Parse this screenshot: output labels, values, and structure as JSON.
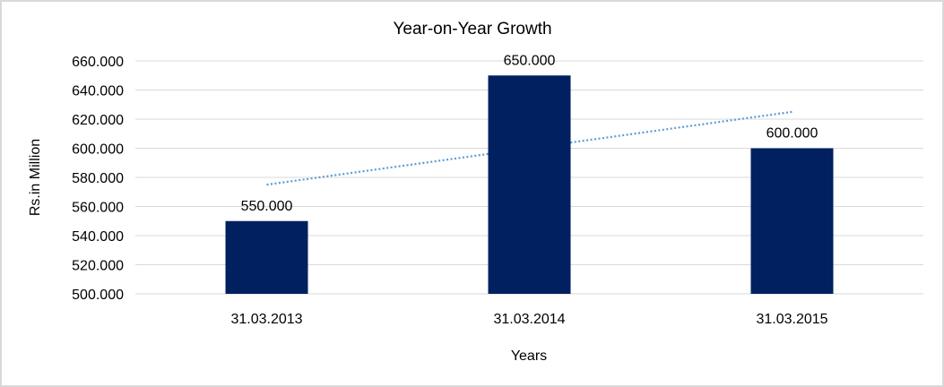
{
  "chart_data": {
    "type": "bar",
    "title": "Year-on-Year Growth",
    "xlabel": "Years",
    "ylabel": "Rs.in Million",
    "categories": [
      "31.03.2013",
      "31.03.2014",
      "31.03.2015"
    ],
    "values": [
      550,
      650,
      600
    ],
    "data_labels": [
      "550.000",
      "650.000",
      "600.000"
    ],
    "ylim": [
      500,
      660
    ],
    "yticks": [
      500,
      520,
      540,
      560,
      580,
      600,
      620,
      640,
      660
    ],
    "ytick_labels": [
      "500.000",
      "520.000",
      "540.000",
      "560.000",
      "580.000",
      "600.000",
      "620.000",
      "640.000",
      "660.000"
    ],
    "grid": true,
    "legend": "none",
    "trendline": {
      "type": "linear",
      "style": "dotted",
      "start": 575,
      "end": 625
    },
    "colors": {
      "bar": "#002060",
      "trendline": "#5b9bd5",
      "grid": "#d9d9d9"
    }
  }
}
